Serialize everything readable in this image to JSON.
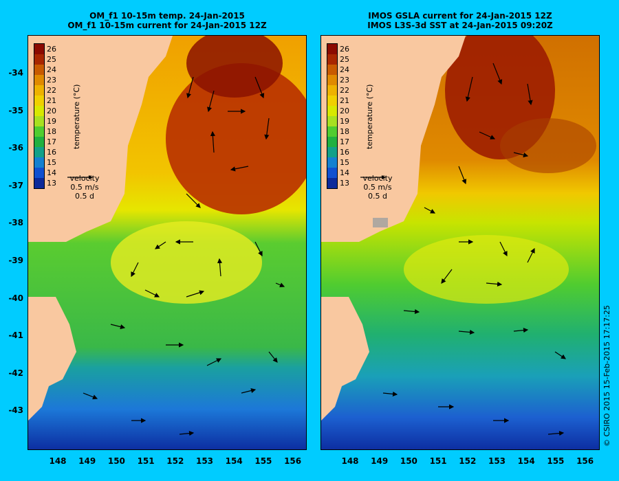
{
  "left_panel": {
    "title_line1": "OM_f1 10-15m temp. 24-Jan-2015",
    "title_line2": "OM_f1 10-15m current for 24-Jan-2015 12Z"
  },
  "right_panel": {
    "title_line1": "IMOS GSLA current for 24-Jan-2015 12Z",
    "title_line2": "IMOS L3S-3d SST at 24-Jan-2015 09:20Z"
  },
  "colorbar": {
    "ticks": [
      "26",
      "25",
      "24",
      "23",
      "22",
      "21",
      "20",
      "19",
      "18",
      "17",
      "16",
      "15",
      "14",
      "13"
    ],
    "label": "temperature (°C)",
    "colors": [
      "#8b0a00",
      "#a82600",
      "#c85a00",
      "#e08a00",
      "#eeb200",
      "#f0d000",
      "#d8e800",
      "#a8e020",
      "#50cc30",
      "#20b040",
      "#12a088",
      "#1480d0",
      "#1050d0",
      "#0c2a9a"
    ]
  },
  "velocity_key": {
    "label": "velocity",
    "speed": "0.5 m/s",
    "duration": "0.5 d"
  },
  "y_axis_labels": [
    "-34",
    "-35",
    "-36",
    "-37",
    "-38",
    "-39",
    "-40",
    "-41",
    "-42",
    "-43"
  ],
  "x_axis_labels": [
    "148",
    "149",
    "150",
    "151",
    "152",
    "153",
    "154",
    "155",
    "156"
  ],
  "credit": "© CSIRO 2015   15-Feb-2015 17:17:25"
}
